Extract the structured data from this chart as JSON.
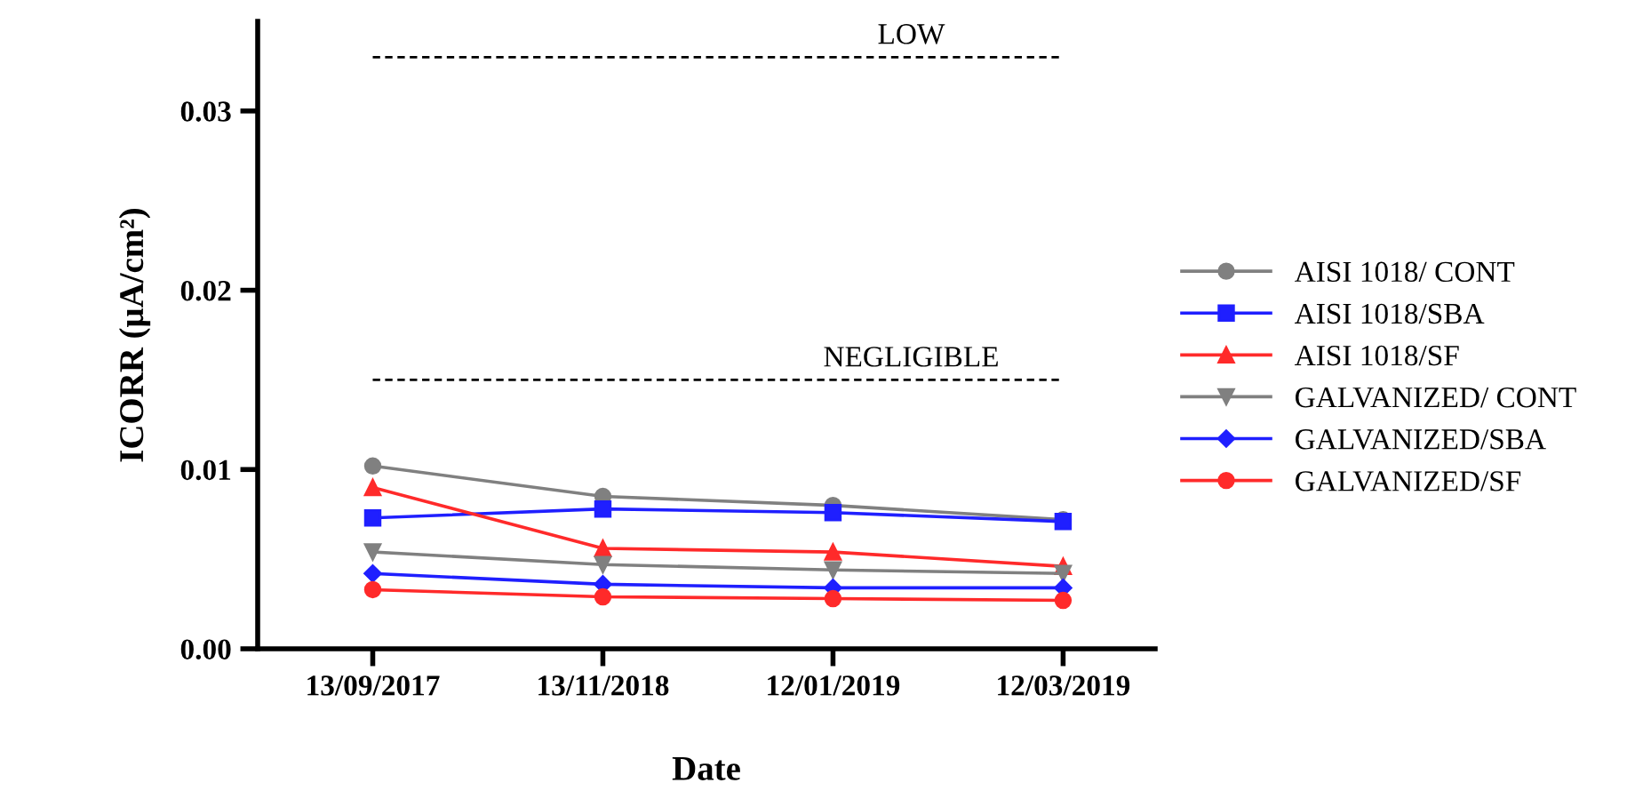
{
  "chart_data": {
    "type": "line",
    "xlabel": "Date",
    "ylabel": "ICORR (μA/cm²)",
    "categories": [
      "13/09/2017",
      "13/11/2018",
      "12/01/2019",
      "12/03/2019"
    ],
    "ylim": [
      0,
      0.035
    ],
    "yticks": [
      {
        "value": 0,
        "label": "0.00"
      },
      {
        "value": 0.01,
        "label": "0.01"
      },
      {
        "value": 0.02,
        "label": "0.02"
      },
      {
        "value": 0.03,
        "label": "0.03"
      }
    ],
    "grid": false,
    "legend": "right",
    "series": [
      {
        "name": "AISI 1018/ CONT",
        "color": "#808080",
        "marker": "circle",
        "values": [
          0.0102,
          0.0085,
          0.008,
          0.0072
        ]
      },
      {
        "name": "AISI 1018/SBA",
        "color": "#1f1fff",
        "marker": "square",
        "values": [
          0.0073,
          0.0078,
          0.0076,
          0.0071
        ]
      },
      {
        "name": "AISI 1018/SF",
        "color": "#ff2a2a",
        "marker": "triangle",
        "values": [
          0.009,
          0.0056,
          0.0054,
          0.0046
        ]
      },
      {
        "name": "GALVANIZED/ CONT",
        "color": "#808080",
        "marker": "triangle_down",
        "values": [
          0.0054,
          0.0047,
          0.0044,
          0.0042
        ]
      },
      {
        "name": "GALVANIZED/SBA",
        "color": "#1f1fff",
        "marker": "diamond",
        "values": [
          0.0042,
          0.0036,
          0.0034,
          0.0034
        ]
      },
      {
        "name": "GALVANIZED/SF",
        "color": "#ff2a2a",
        "marker": "circle",
        "values": [
          0.0033,
          0.0029,
          0.0028,
          0.0027
        ]
      }
    ],
    "ref_lines": [
      {
        "axis": "y",
        "value": 0.033,
        "label": "LOW",
        "color": "#000000",
        "line_style": "dashed"
      },
      {
        "axis": "y",
        "value": 0.015,
        "label": "NEGLIGIBLE",
        "color": "#000000",
        "line_style": "dashed"
      }
    ]
  }
}
